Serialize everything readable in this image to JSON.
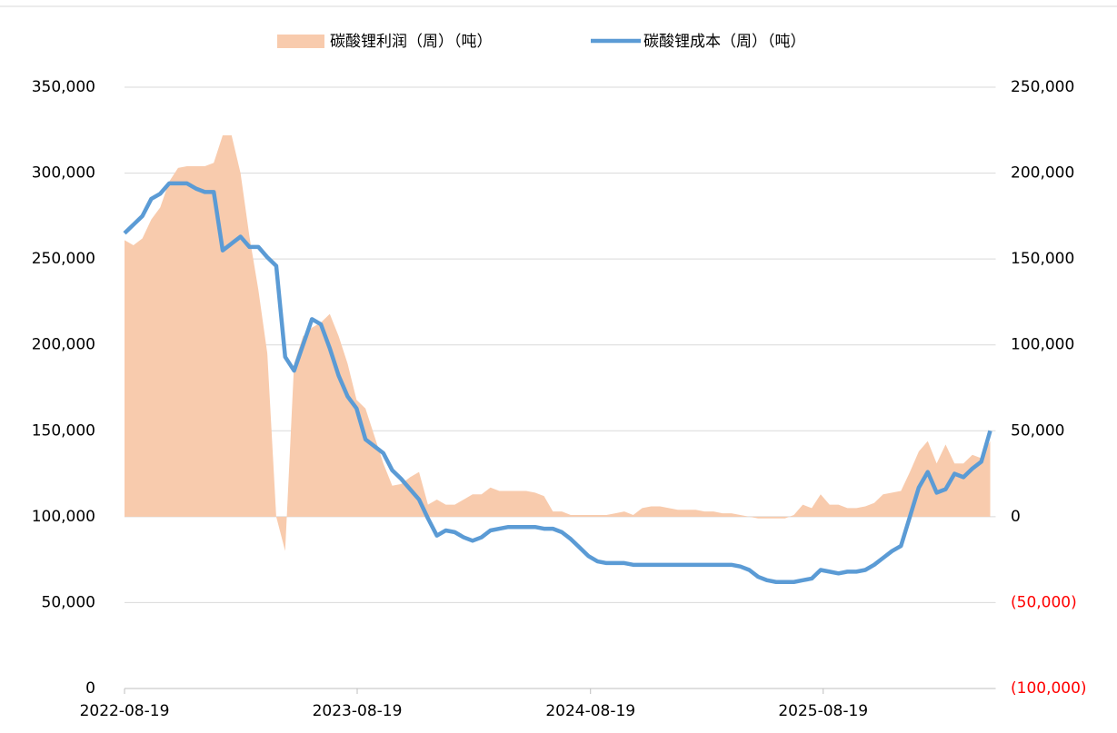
{
  "chart_data": {
    "type": "combo",
    "x": [
      "2022-08-19",
      "2022-09-02",
      "2022-09-16",
      "2022-09-30",
      "2022-10-14",
      "2022-10-28",
      "2022-11-11",
      "2022-11-25",
      "2022-12-09",
      "2022-12-23",
      "2023-01-06",
      "2023-01-20",
      "2023-02-03",
      "2023-02-17",
      "2023-03-03",
      "2023-03-17",
      "2023-03-31",
      "2023-04-14",
      "2023-04-28",
      "2023-05-12",
      "2023-05-26",
      "2023-06-09",
      "2023-06-23",
      "2023-07-07",
      "2023-07-21",
      "2023-08-04",
      "2023-08-18",
      "2023-09-01",
      "2023-09-15",
      "2023-09-29",
      "2023-10-13",
      "2023-10-27",
      "2023-11-10",
      "2023-11-24",
      "2023-12-08",
      "2023-12-22",
      "2024-01-05",
      "2024-01-19",
      "2024-02-02",
      "2024-02-16",
      "2024-03-01",
      "2024-03-15",
      "2024-03-29",
      "2024-04-12",
      "2024-04-26",
      "2024-05-10",
      "2024-05-24",
      "2024-06-07",
      "2024-06-21",
      "2024-07-05",
      "2024-07-19",
      "2024-08-02",
      "2024-08-16",
      "2024-08-30",
      "2024-09-13",
      "2024-09-27",
      "2024-10-11",
      "2024-10-25",
      "2024-11-08",
      "2024-11-22",
      "2024-12-06",
      "2024-12-20",
      "2025-01-03",
      "2025-01-17",
      "2025-01-31",
      "2025-02-14",
      "2025-02-28",
      "2025-03-14",
      "2025-03-28",
      "2025-04-11",
      "2025-04-25",
      "2025-05-09",
      "2025-05-23",
      "2025-06-06",
      "2025-06-20",
      "2025-07-04",
      "2025-07-18",
      "2025-08-01",
      "2025-08-15",
      "2025-08-29",
      "2025-09-12",
      "2025-09-26",
      "2025-10-10",
      "2025-10-24",
      "2025-11-07",
      "2025-11-21",
      "2025-12-05",
      "2025-12-19",
      "2026-01-02",
      "2026-01-16",
      "2026-01-30",
      "2026-02-13",
      "2026-02-27",
      "2026-03-13",
      "2026-03-27",
      "2026-04-10",
      "2026-04-24",
      "2026-05-08"
    ],
    "xlim": [
      "2022-08-19",
      "2026-05-08"
    ],
    "xticks": [
      "2022-08-19",
      "2023-08-19",
      "2024-08-19",
      "2025-08-19"
    ],
    "ylim": [
      0,
      350000
    ],
    "yticks": [
      0,
      {
        "value": 50000,
        "label": "50,000"
      },
      {
        "value": 100000,
        "label": "100,000"
      },
      {
        "value": 150000,
        "label": "150,000"
      },
      {
        "value": 200000,
        "label": "200,000"
      },
      {
        "value": 250000,
        "label": "250,000"
      },
      {
        "value": 300000,
        "label": "300,000"
      },
      {
        "value": 350000,
        "label": "350,000"
      }
    ],
    "y2lim": [
      -100000,
      250000
    ],
    "y2ticks": [
      {
        "value": -100000,
        "label": "(100,000)"
      },
      {
        "value": -50000,
        "label": "(50,000)"
      },
      0,
      {
        "value": 50000,
        "label": "50,000"
      },
      {
        "value": 100000,
        "label": "100,000"
      },
      {
        "value": 150000,
        "label": "150,000"
      },
      {
        "value": 200000,
        "label": "200,000"
      },
      {
        "value": 250000,
        "label": "250,000"
      }
    ],
    "negative_label_color": "#ff0000",
    "grid": true,
    "legend": "top",
    "series": [
      {
        "name": "碳酸锂利润（周）（吨）",
        "type": "area",
        "axis": "y2",
        "color": "#f8cbad",
        "values": [
          161000,
          158000,
          162000,
          173000,
          180000,
          195000,
          203000,
          204000,
          204000,
          204000,
          206000,
          222000,
          222000,
          200000,
          163000,
          132000,
          95000,
          0,
          -20000,
          89000,
          105000,
          110000,
          113000,
          118000,
          105000,
          89000,
          68000,
          63000,
          47000,
          31000,
          18000,
          19000,
          23000,
          26000,
          7000,
          10000,
          7000,
          7000,
          10000,
          13000,
          13000,
          17000,
          15000,
          15000,
          15000,
          15000,
          14000,
          12000,
          3000,
          3000,
          1000,
          1000,
          1000,
          1000,
          1000,
          2000,
          3000,
          1000,
          5000,
          6000,
          6000,
          5000,
          4000,
          4000,
          4000,
          3000,
          3000,
          2000,
          2000,
          1000,
          0,
          -1000,
          -1000,
          -1000,
          -1000,
          1000,
          7000,
          5000,
          13000,
          7000,
          7000,
          5000,
          5000,
          6000,
          8000,
          13000,
          14000,
          15000,
          26000,
          38000,
          44000,
          31000,
          42000,
          31000,
          31000,
          36000,
          34000,
          44000
        ]
      },
      {
        "name": "碳酸锂成本（周）（吨）",
        "type": "line",
        "color": "#5b9bd5",
        "values": [
          265000,
          270000,
          275000,
          285000,
          288000,
          294000,
          294000,
          294000,
          291000,
          289000,
          289000,
          255000,
          259000,
          263000,
          257000,
          257000,
          251000,
          246000,
          193000,
          185000,
          200000,
          215000,
          212000,
          198000,
          182000,
          170000,
          163000,
          145000,
          141000,
          137000,
          127000,
          122000,
          116000,
          110000,
          99000,
          89000,
          92000,
          91000,
          88000,
          86000,
          88000,
          92000,
          93000,
          94000,
          94000,
          94000,
          94000,
          93000,
          93000,
          91000,
          87000,
          82000,
          77000,
          74000,
          73000,
          73000,
          73000,
          72000,
          72000,
          72000,
          72000,
          72000,
          72000,
          72000,
          72000,
          72000,
          72000,
          72000,
          72000,
          71000,
          69000,
          65000,
          63000,
          62000,
          62000,
          62000,
          63000,
          64000,
          69000,
          68000,
          67000,
          68000,
          68000,
          69000,
          72000,
          76000,
          80000,
          83000,
          100000,
          117000,
          126000,
          114000,
          116000,
          125000,
          123000,
          128000,
          132000,
          150000
        ]
      }
    ]
  }
}
